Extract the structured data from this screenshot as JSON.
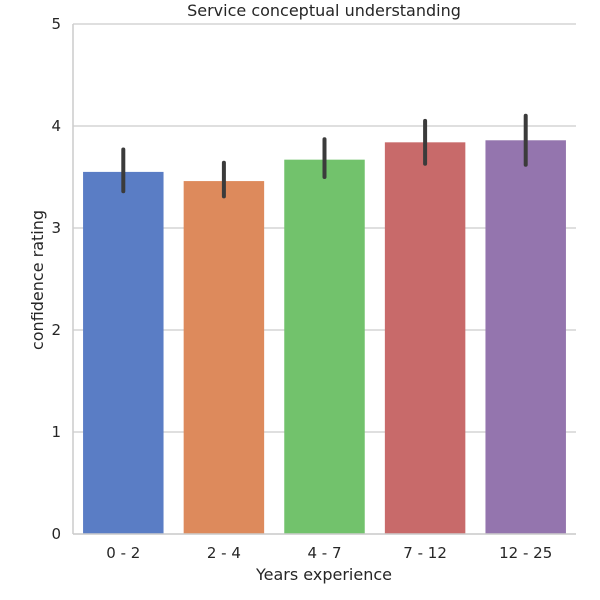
{
  "chart_data": {
    "type": "bar",
    "title": "Service conceptual understanding",
    "xlabel": "Years experience",
    "ylabel": "confidence rating",
    "categories": [
      "0 - 2",
      "2 - 4",
      "4 - 7",
      "7 - 12",
      "12 - 25"
    ],
    "values": [
      3.55,
      3.46,
      3.67,
      3.84,
      3.86
    ],
    "error_low": [
      3.36,
      3.31,
      3.5,
      3.63,
      3.62
    ],
    "error_high": [
      3.77,
      3.64,
      3.87,
      4.05,
      4.1
    ],
    "ylim": [
      0,
      5
    ],
    "yticks": [
      0,
      1,
      2,
      3,
      4,
      5
    ],
    "grid": "horizontal",
    "colors": [
      "#5a7dc5",
      "#dd8a5c",
      "#72c26c",
      "#c86a6a",
      "#9475ae"
    ],
    "error_color": "#3b3b3b",
    "grid_color": "#cccccc"
  }
}
